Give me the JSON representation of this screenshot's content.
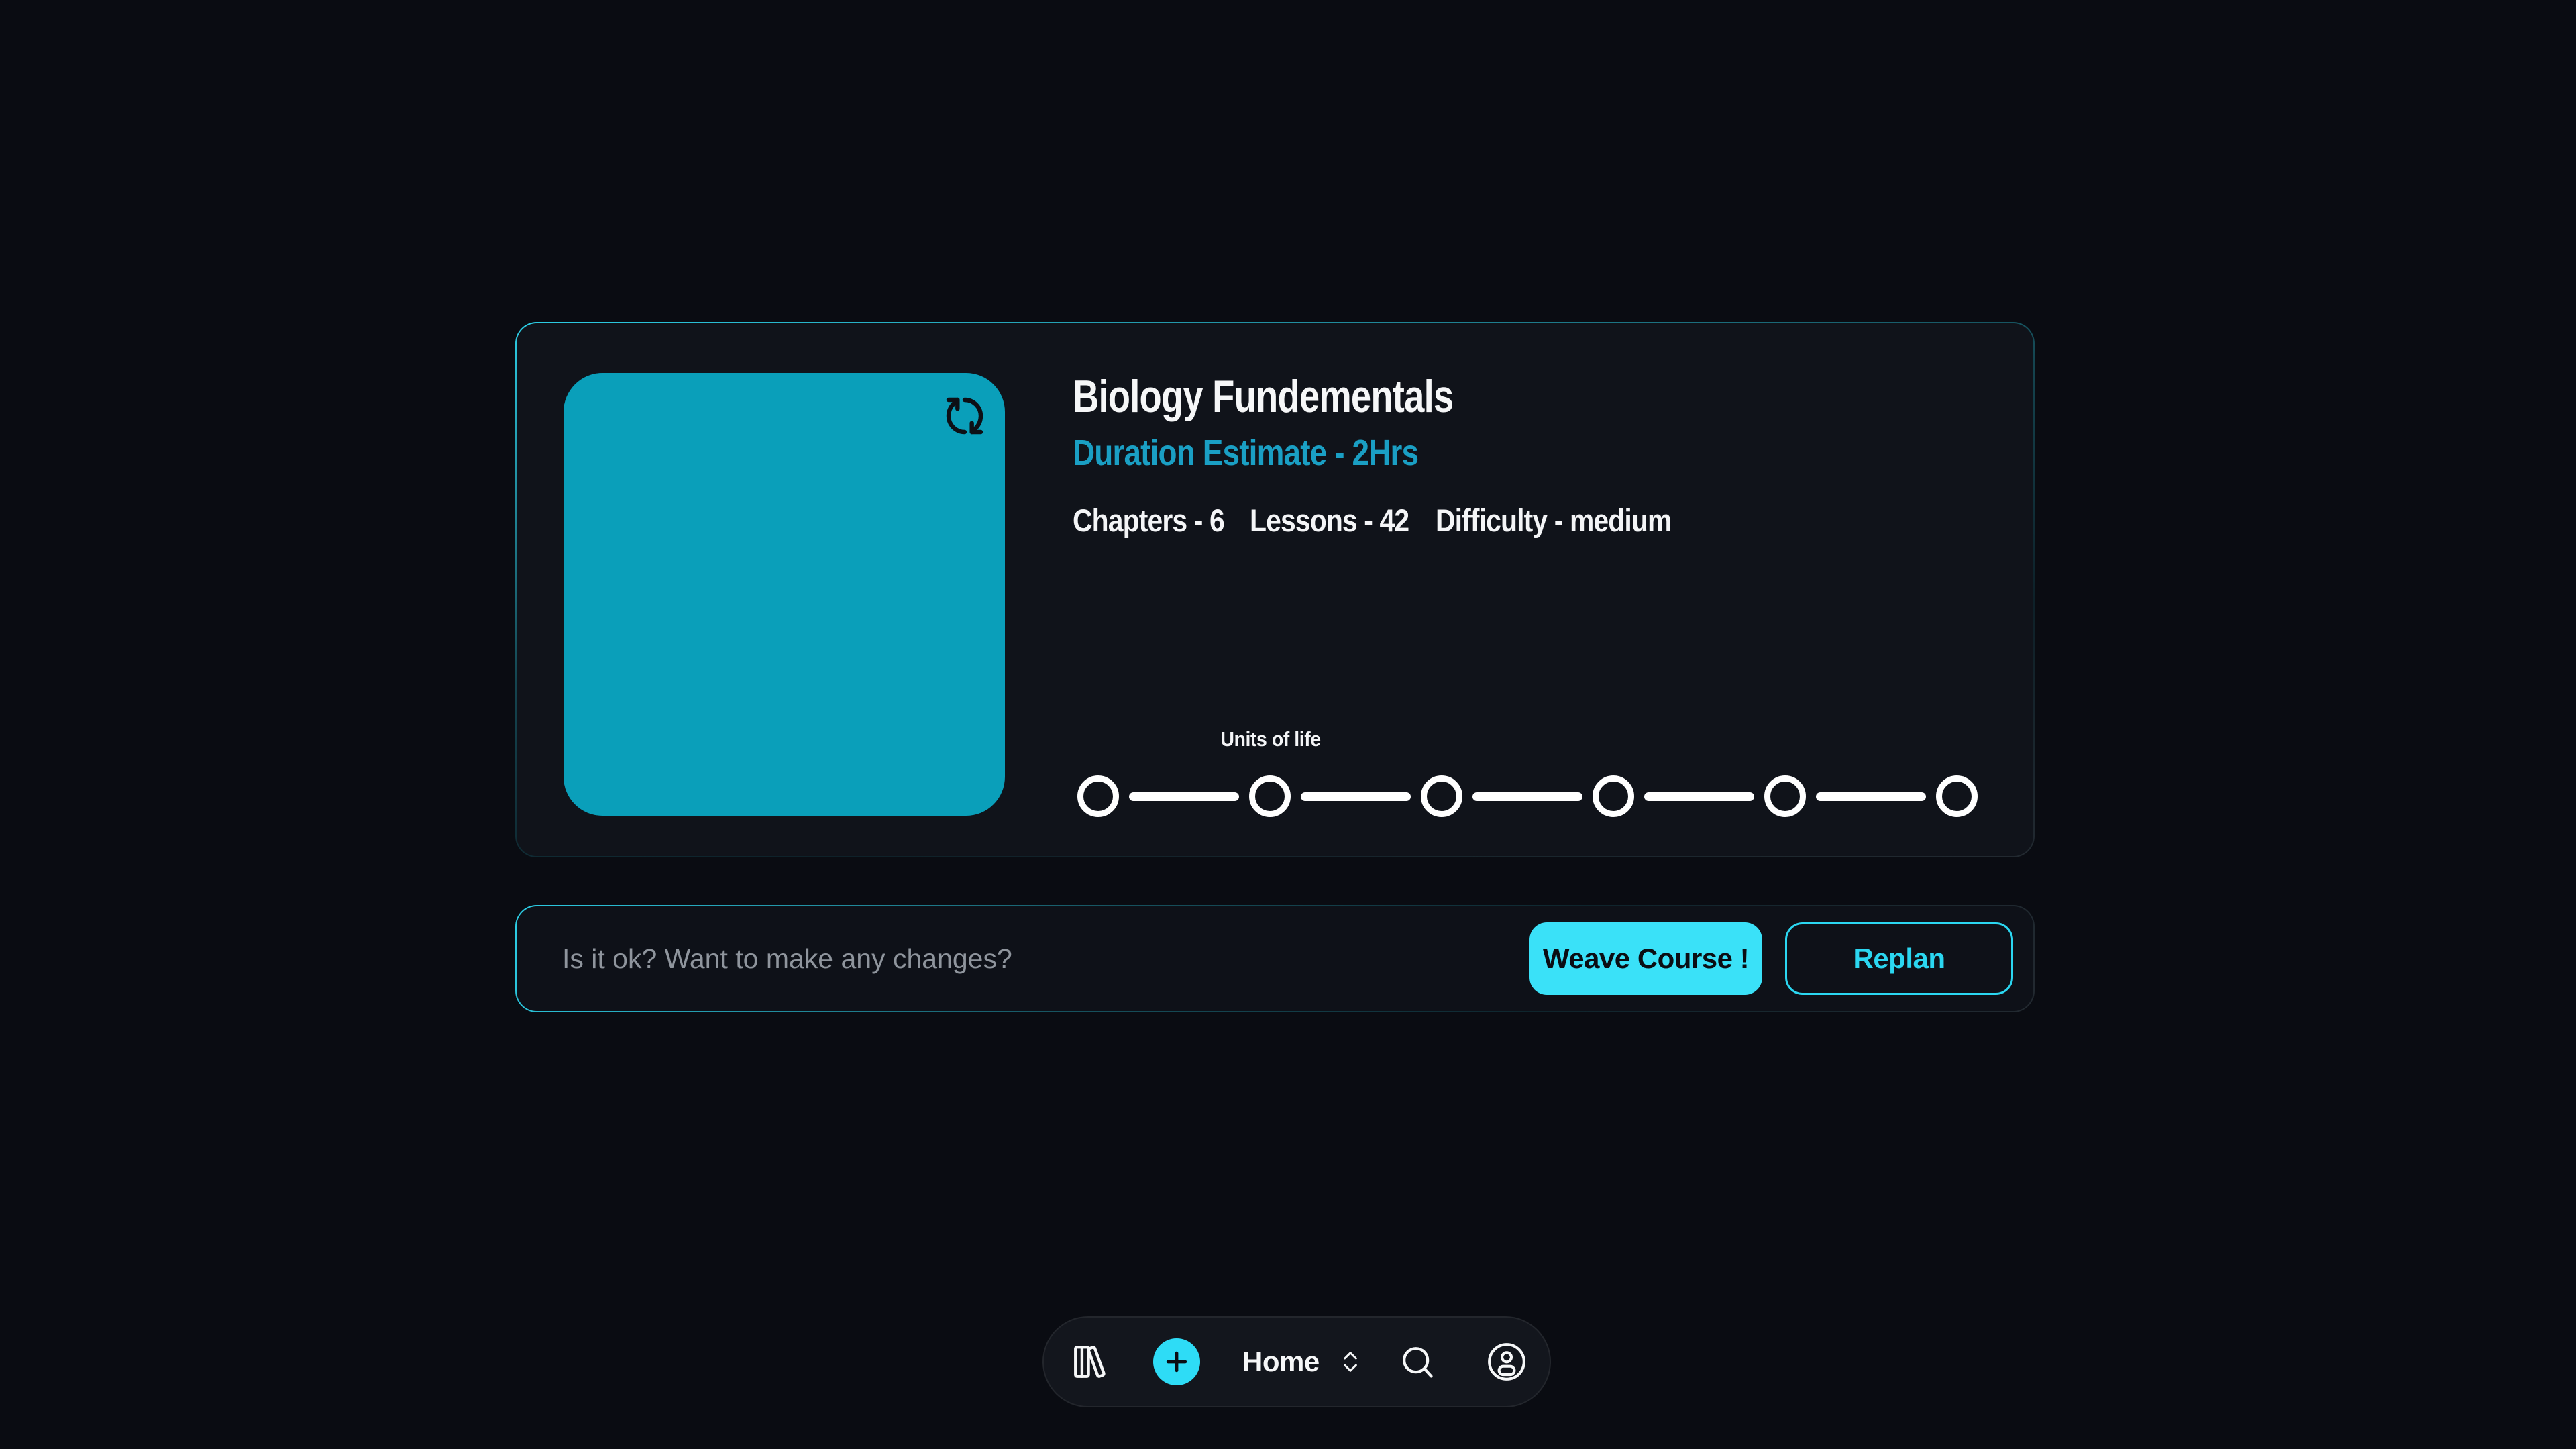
{
  "colors": {
    "page_background": "#0a0c12",
    "card_background": "#10131a",
    "accent_cyan": "#2edcf6",
    "thumbnail_teal": "#0a9fba",
    "duration_text": "#1a9fc4",
    "muted_text": "#8f959d",
    "dark_text": "#0b0d13",
    "white": "#f6f7f8"
  },
  "course_card": {
    "title": "Biology Fundementals",
    "duration_estimate": "Duration Estimate - 2Hrs",
    "stats": [
      "Chapters - 6",
      "Lessons - 42",
      "Difficulty - medium"
    ],
    "thumbnail_icon": "refresh-icon",
    "timeline": {
      "label": "Units of life",
      "step_count": 6
    }
  },
  "prompt_bar": {
    "question_placeholder": "Is it ok? Want to make any changes?",
    "weave_button_label": "Weave Course !",
    "replan_button_label": "Replan"
  },
  "bottom_nav": {
    "home_label": "Home",
    "icons": [
      "library-icon",
      "add-icon",
      "chevrons-up-down-icon",
      "search-icon",
      "profile-icon"
    ]
  }
}
